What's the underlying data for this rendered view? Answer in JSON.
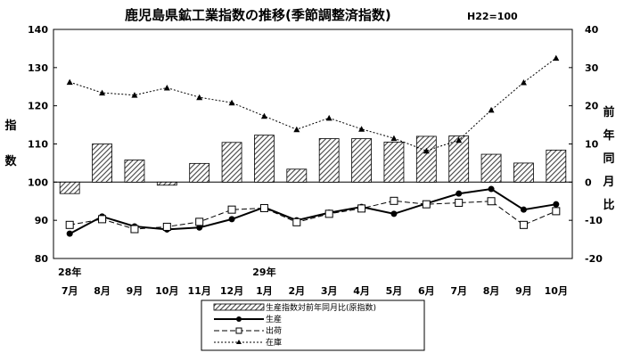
{
  "chart_data": {
    "type": "bar",
    "title": "鹿児島県鉱工業指数の推移(季節調整済指数)",
    "subtitle": "H22=100",
    "categories": [
      "7月",
      "8月",
      "9月",
      "10月",
      "11月",
      "12月",
      "1月",
      "2月",
      "3月",
      "4月",
      "5月",
      "6月",
      "7月",
      "8月",
      "9月",
      "10月"
    ],
    "year_labels": [
      {
        "index": 0,
        "label": "28年"
      },
      {
        "index": 6,
        "label": "29年"
      }
    ],
    "ylabel_left": "指数",
    "ylabel_right": "前年同月比",
    "ylim_left": [
      80,
      140
    ],
    "ylim_right": [
      -20,
      40
    ],
    "yticks_left": [
      80,
      90,
      100,
      110,
      120,
      130,
      140
    ],
    "yticks_right": [
      -20,
      -10,
      0,
      10,
      20,
      30,
      40
    ],
    "grid": false,
    "legend_position": "bottom",
    "bars": {
      "name": "生産指数対前年同月比(原指数)",
      "axis": "right",
      "values": [
        -3.0,
        10.0,
        5.8,
        -0.8,
        4.9,
        10.4,
        12.3,
        3.4,
        11.4,
        11.4,
        10.5,
        12.0,
        12.1,
        7.3,
        5.0,
        8.4
      ]
    },
    "series": [
      {
        "name": "生産",
        "axis": "left",
        "style": "solid",
        "marker": "circle",
        "values": [
          86.5,
          91.0,
          88.4,
          87.6,
          88.1,
          90.3,
          93.4,
          90.0,
          92.0,
          93.5,
          91.7,
          94.4,
          97.0,
          98.2,
          92.8,
          94.2
        ]
      },
      {
        "name": "出荷",
        "axis": "left",
        "style": "dashed",
        "marker": "square",
        "values": [
          88.8,
          90.3,
          87.7,
          88.3,
          89.6,
          92.8,
          93.2,
          89.5,
          91.7,
          93.1,
          95.1,
          94.2,
          94.6,
          95.0,
          88.8,
          92.4
        ]
      },
      {
        "name": "在庫",
        "axis": "right",
        "style": "dotted",
        "marker": "triangle",
        "values": [
          26.2,
          23.4,
          22.8,
          24.7,
          22.2,
          20.8,
          17.3,
          13.8,
          16.8,
          13.9,
          11.5,
          8.2,
          11.0,
          18.9,
          26.1,
          32.5
        ]
      }
    ]
  }
}
